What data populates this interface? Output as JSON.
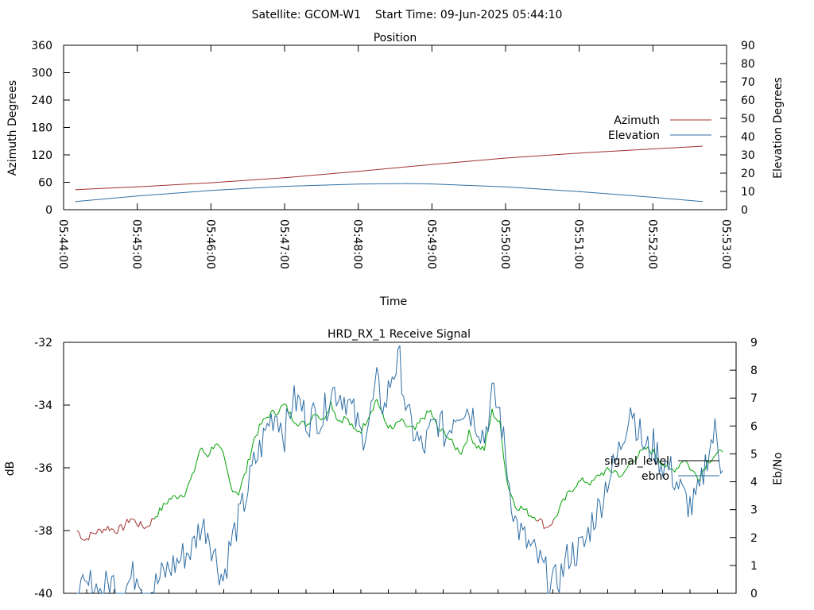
{
  "header": {
    "title": "Satellite: GCOM-W1    Start Time: 09-Jun-2025 05:44:10"
  },
  "chart_data": [
    {
      "type": "line",
      "title": "Position",
      "xlabel": "Time",
      "ylabel": "Azimuth Degrees",
      "y2label": "Elevation Degrees",
      "xlim": [
        "05:44:00",
        "05:53:00"
      ],
      "x_ticks": [
        "05:44:00",
        "05:45:00",
        "05:46:00",
        "05:47:00",
        "05:48:00",
        "05:49:00",
        "05:50:00",
        "05:51:00",
        "05:52:00",
        "05:53:00"
      ],
      "ylim": [
        0,
        360
      ],
      "y_ticks": [
        0,
        60,
        120,
        180,
        240,
        300,
        360
      ],
      "y2lim": [
        0,
        90
      ],
      "y2_ticks": [
        0,
        10,
        20,
        30,
        40,
        50,
        60,
        70,
        80,
        90
      ],
      "legend_position": "right",
      "series": [
        {
          "name": "Azimuth",
          "axis": "y",
          "color": "#a0312f",
          "x": [
            "05:44:10",
            "05:45:00",
            "05:46:00",
            "05:47:00",
            "05:48:00",
            "05:49:00",
            "05:50:00",
            "05:51:00",
            "05:52:00",
            "05:52:40"
          ],
          "values": [
            44,
            50,
            59,
            70,
            84,
            99,
            113,
            124,
            133,
            139
          ]
        },
        {
          "name": "Elevation",
          "axis": "y2",
          "color": "#2f6fa6",
          "x": [
            "05:44:10",
            "05:45:00",
            "05:46:00",
            "05:47:00",
            "05:48:00",
            "05:48:40",
            "05:49:00",
            "05:50:00",
            "05:51:00",
            "05:52:00",
            "05:52:40"
          ],
          "values": [
            4.5,
            7.5,
            10.5,
            12.8,
            14.0,
            14.3,
            14.1,
            12.5,
            9.9,
            6.8,
            4.5
          ]
        }
      ]
    },
    {
      "type": "line",
      "title": "HRD_RX_1 Receive Signal",
      "ylabel": "dB",
      "y2label": "Eb/No",
      "ylim": [
        -40,
        -32
      ],
      "y_ticks": [
        -40,
        -38,
        -36,
        -34,
        -32
      ],
      "y2lim": [
        0,
        9
      ],
      "y2_ticks": [
        0,
        1,
        2,
        3,
        4,
        5,
        6,
        7,
        8,
        9
      ],
      "legend_position": "right",
      "series": [
        {
          "name": "signal_level",
          "axis": "y",
          "color": "#00a000",
          "low_color": "#a0312f",
          "low_threshold": -37.6,
          "x_range": [
            0.02,
            0.98
          ],
          "values": [
            -38.0,
            -38.3,
            -38.1,
            -38.0,
            -37.9,
            -38.0,
            -37.9,
            -37.6,
            -37.8,
            -37.9,
            -37.6,
            -37.3,
            -37.0,
            -36.9,
            -36.8,
            -36.3,
            -35.4,
            -35.6,
            -35.2,
            -35.6,
            -36.6,
            -36.8,
            -36.1,
            -35.1,
            -34.6,
            -34.3,
            -34.2,
            -34.0,
            -34.4,
            -34.6,
            -34.6,
            -34.2,
            -34.5,
            -33.9,
            -34.5,
            -34.4,
            -34.8,
            -34.8,
            -34.3,
            -33.8,
            -34.5,
            -34.8,
            -34.5,
            -34.7,
            -34.8,
            -34.4,
            -34.2,
            -34.8,
            -34.9,
            -35.3,
            -35.5,
            -34.9,
            -35.3,
            -35.4,
            -34.2,
            -34.6,
            -36.5,
            -37.2,
            -37.3,
            -37.5,
            -37.6,
            -37.9,
            -37.7,
            -37.2,
            -36.8,
            -36.5,
            -36.4,
            -36.5,
            -36.2,
            -36.1,
            -36.1,
            -36.3,
            -35.8,
            -35.6,
            -35.4,
            -35.5,
            -35.8,
            -36.1,
            -36.0,
            -35.7,
            -36.1,
            -36.3,
            -35.8,
            -35.6,
            -35.5
          ]
        },
        {
          "name": "ebno",
          "axis": "y2",
          "color": "#2f6fa6",
          "x_range": [
            0.02,
            0.98
          ],
          "values": [
            0.1,
            0.0,
            0.4,
            0.0,
            0.3,
            0.4,
            0.1,
            0.5,
            0.8,
            0.0,
            0.2,
            0.6,
            0.9,
            1.1,
            1.4,
            1.6,
            2.4,
            2.3,
            1.3,
            0.5,
            1.8,
            2.6,
            3.5,
            4.6,
            5.3,
            6.2,
            6.5,
            5.7,
            6.9,
            6.8,
            6.2,
            6.4,
            6.3,
            7.3,
            7.2,
            7.0,
            6.4,
            5.6,
            6.2,
            7.5,
            6.6,
            7.9,
            8.3,
            6.3,
            5.7,
            5.1,
            5.8,
            6.2,
            5.6,
            6.4,
            6.7,
            6.6,
            6.2,
            5.6,
            7.1,
            6.5,
            4.4,
            2.6,
            2.0,
            1.6,
            1.2,
            0.7,
            0.3,
            0.7,
            1.4,
            1.5,
            1.7,
            2.6,
            3.1,
            4.1,
            4.6,
            5.6,
            6.8,
            5.9,
            5.1,
            5.3,
            4.7,
            4.5,
            4.0,
            3.4,
            3.1,
            3.6,
            5.0,
            5.8,
            4.4
          ]
        }
      ]
    }
  ]
}
